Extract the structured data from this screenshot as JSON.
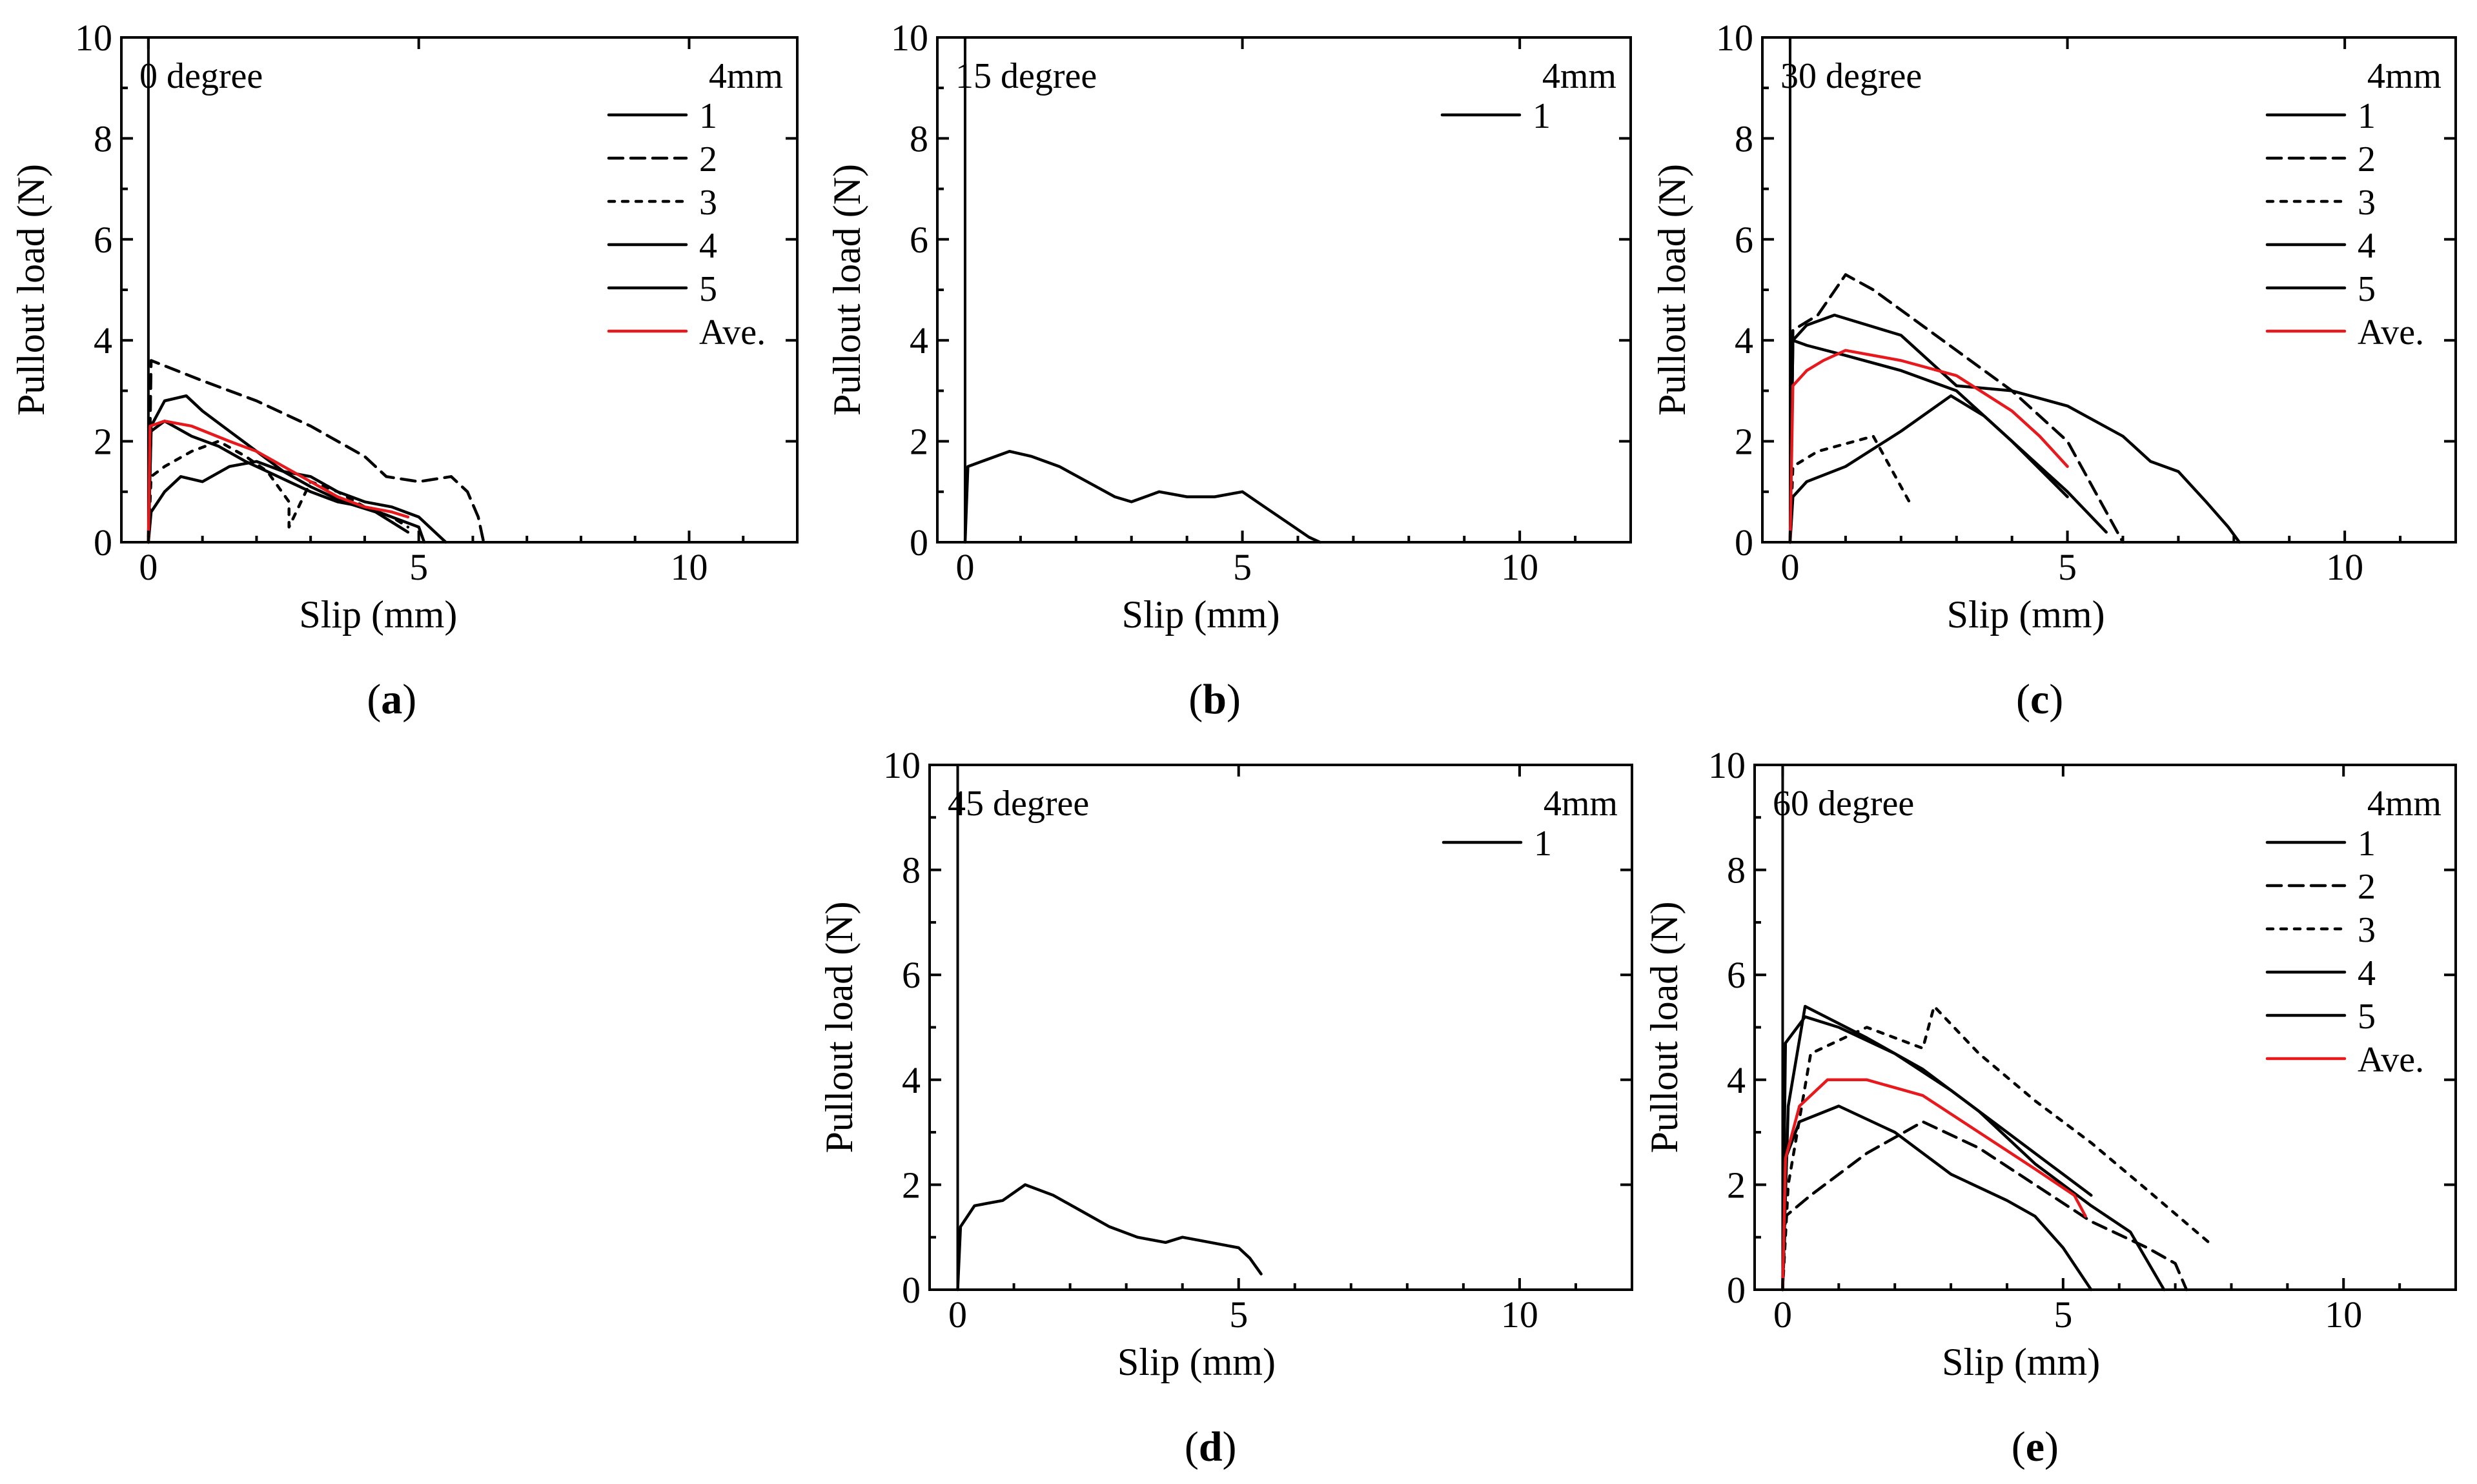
{
  "chart_data": [
    {
      "type": "line",
      "panel_label": "a",
      "annotation": "0 degree",
      "legend_title": "4mm",
      "xlabel": "Slip (mm)",
      "ylabel": "Pullout load (N)",
      "xlim": [
        -0.5,
        12
      ],
      "ylim": [
        0,
        10
      ],
      "xticks": [
        0,
        5,
        10
      ],
      "yticks": [
        0,
        2,
        4,
        6,
        8,
        10
      ],
      "series": [
        {
          "name": "1",
          "color": "#000000",
          "dash": "solid",
          "x": [
            0,
            0.05,
            0.3,
            0.8,
            1.3,
            1.8,
            2.2,
            2.6,
            3.0,
            3.5,
            4.0,
            4.5,
            5.0,
            5.1
          ],
          "y": [
            0,
            2.2,
            2.4,
            2.1,
            1.9,
            1.6,
            1.4,
            1.2,
            1.0,
            0.8,
            0.7,
            0.5,
            0.3,
            0
          ]
        },
        {
          "name": "2",
          "color": "#000000",
          "dash": "dashed",
          "x": [
            0,
            0.05,
            1.0,
            2.0,
            3.0,
            4.0,
            4.4,
            5.0,
            5.6,
            5.9,
            6.1,
            6.2
          ],
          "y": [
            0,
            3.6,
            3.2,
            2.8,
            2.3,
            1.7,
            1.3,
            1.2,
            1.3,
            1.0,
            0.5,
            0
          ]
        },
        {
          "name": "3",
          "color": "#000000",
          "dash": "dotted",
          "x": [
            0,
            0.05,
            0.3,
            0.8,
            1.3,
            1.8,
            2.2,
            2.6,
            2.6,
            3.0,
            3.5,
            4.0,
            4.5,
            4.8
          ],
          "y": [
            0,
            1.3,
            1.5,
            1.8,
            2.0,
            1.7,
            1.4,
            0.8,
            0.3,
            1.2,
            1.0,
            0.7,
            0.5,
            0.3
          ]
        },
        {
          "name": "4",
          "color": "#000000",
          "dash": "solid",
          "x": [
            0,
            0.05,
            0.3,
            0.7,
            1.0,
            1.5,
            2.0,
            2.5,
            3.0,
            3.6,
            4.2,
            4.5,
            4.8
          ],
          "y": [
            0,
            2.3,
            2.8,
            2.9,
            2.6,
            2.2,
            1.8,
            1.4,
            1.1,
            0.8,
            0.6,
            0.4,
            0.2
          ]
        },
        {
          "name": "5",
          "color": "#000000",
          "dash": "solid",
          "x": [
            0,
            0.05,
            0.3,
            0.6,
            1.0,
            1.5,
            2.0,
            2.5,
            3.0,
            3.5,
            4.0,
            4.5,
            5.0,
            5.3,
            5.5
          ],
          "y": [
            0,
            0.6,
            1.0,
            1.3,
            1.2,
            1.5,
            1.6,
            1.4,
            1.3,
            1.0,
            0.8,
            0.7,
            0.5,
            0.2,
            0
          ]
        },
        {
          "name": "Ave.",
          "color": "#e8191c",
          "dash": "solid",
          "x": [
            0,
            0.03,
            0.3,
            0.8,
            1.5,
            2.0,
            2.5,
            3.0,
            3.5,
            4.0,
            4.5,
            4.8
          ],
          "y": [
            0,
            2.3,
            2.4,
            2.3,
            2.0,
            1.8,
            1.5,
            1.2,
            0.9,
            0.7,
            0.6,
            0.5
          ]
        }
      ]
    },
    {
      "type": "line",
      "panel_label": "b",
      "annotation": "15 degree",
      "legend_title": "4mm",
      "xlabel": "Slip (mm)",
      "ylabel": "Pullout load (N)",
      "xlim": [
        -0.5,
        12
      ],
      "ylim": [
        0,
        10
      ],
      "xticks": [
        0,
        5,
        10
      ],
      "yticks": [
        0,
        2,
        4,
        6,
        8,
        10
      ],
      "series": [
        {
          "name": "1",
          "color": "#000000",
          "dash": "solid",
          "x": [
            0,
            0.05,
            0.3,
            0.8,
            1.2,
            1.7,
            2.2,
            2.7,
            3.0,
            3.5,
            4.0,
            4.5,
            5.0,
            5.4,
            5.8,
            6.2,
            6.4
          ],
          "y": [
            0,
            1.5,
            1.6,
            1.8,
            1.7,
            1.5,
            1.2,
            0.9,
            0.8,
            1.0,
            0.9,
            0.9,
            1.0,
            0.7,
            0.4,
            0.1,
            0
          ]
        }
      ]
    },
    {
      "type": "line",
      "panel_label": "c",
      "annotation": "30 degree",
      "legend_title": "4mm",
      "xlabel": "Slip (mm)",
      "ylabel": "Pullout load (N)",
      "xlim": [
        -0.5,
        12
      ],
      "ylim": [
        0,
        10
      ],
      "xticks": [
        0,
        5,
        10
      ],
      "yticks": [
        0,
        2,
        4,
        6,
        8,
        10
      ],
      "series": [
        {
          "name": "1",
          "color": "#000000",
          "dash": "solid",
          "x": [
            0,
            0.05,
            0.3,
            1.0,
            2.0,
            3.0,
            4.0,
            5.0
          ],
          "y": [
            0,
            4.0,
            3.9,
            3.7,
            3.4,
            3.0,
            2.0,
            0.9
          ]
        },
        {
          "name": "2",
          "color": "#000000",
          "dash": "dashed",
          "x": [
            0,
            0.05,
            0.5,
            1.0,
            1.5,
            2.0,
            3.0,
            4.0,
            5.0,
            5.5,
            6.0
          ],
          "y": [
            0,
            4.2,
            4.5,
            5.3,
            5.0,
            4.6,
            3.8,
            3.0,
            2.0,
            1.0,
            0
          ]
        },
        {
          "name": "3",
          "color": "#000000",
          "dash": "dotted",
          "x": [
            0,
            0.05,
            0.5,
            1.5,
            2.2
          ],
          "y": [
            0,
            1.5,
            1.8,
            2.1,
            0.7
          ]
        },
        {
          "name": "4",
          "color": "#000000",
          "dash": "solid",
          "x": [
            0,
            0.05,
            0.3,
            1.0,
            2.0,
            2.9,
            3.5,
            4.0,
            5.0,
            5.7
          ],
          "y": [
            0,
            0.9,
            1.2,
            1.5,
            2.2,
            2.9,
            2.5,
            2.0,
            1.0,
            0.2
          ]
        },
        {
          "name": "5",
          "color": "#000000",
          "dash": "solid",
          "x": [
            0,
            0.05,
            0.3,
            0.8,
            2.0,
            3.0,
            4.0,
            5.0,
            6.0,
            6.5,
            7.0,
            7.5,
            7.9,
            8.1
          ],
          "y": [
            0,
            4.0,
            4.3,
            4.5,
            4.1,
            3.1,
            3.0,
            2.7,
            2.1,
            1.6,
            1.4,
            0.8,
            0.3,
            0
          ]
        },
        {
          "name": "Ave.",
          "color": "#e8191c",
          "dash": "solid",
          "x": [
            0,
            0.05,
            0.3,
            0.6,
            1.0,
            2.0,
            3.0,
            4.0,
            4.5,
            5.0
          ],
          "y": [
            0,
            3.1,
            3.4,
            3.6,
            3.8,
            3.6,
            3.3,
            2.6,
            2.1,
            1.5
          ]
        }
      ]
    },
    {
      "type": "line",
      "panel_label": "d",
      "annotation": "45 degree",
      "legend_title": "4mm",
      "xlabel": "Slip (mm)",
      "ylabel": "Pullout load (N)",
      "xlim": [
        -0.5,
        12
      ],
      "ylim": [
        0,
        10
      ],
      "xticks": [
        0,
        5,
        10
      ],
      "yticks": [
        0,
        2,
        4,
        6,
        8,
        10
      ],
      "series": [
        {
          "name": "1",
          "color": "#000000",
          "dash": "solid",
          "x": [
            0,
            0.05,
            0.3,
            0.8,
            1.2,
            1.7,
            2.2,
            2.7,
            3.2,
            3.7,
            4.0,
            4.5,
            5.0,
            5.2,
            5.4
          ],
          "y": [
            0,
            1.2,
            1.6,
            1.7,
            2.0,
            1.8,
            1.5,
            1.2,
            1.0,
            0.9,
            1.0,
            0.9,
            0.8,
            0.6,
            0.3
          ]
        }
      ]
    },
    {
      "type": "line",
      "panel_label": "e",
      "annotation": "60 degree",
      "legend_title": "4mm",
      "xlabel": "Slip (mm)",
      "ylabel": "Pullout load (N)",
      "xlim": [
        -0.5,
        12
      ],
      "ylim": [
        0,
        10
      ],
      "xticks": [
        0,
        5,
        10
      ],
      "yticks": [
        0,
        2,
        4,
        6,
        8,
        10
      ],
      "series": [
        {
          "name": "1",
          "color": "#000000",
          "dash": "solid",
          "x": [
            0,
            0.05,
            0.4,
            1.0,
            2.0,
            3.0,
            4.0,
            5.0,
            5.5
          ],
          "y": [
            0,
            4.7,
            5.2,
            5.0,
            4.5,
            3.8,
            3.0,
            2.2,
            1.8
          ]
        },
        {
          "name": "2",
          "color": "#000000",
          "dash": "dashed",
          "x": [
            0,
            0.05,
            0.5,
            1.5,
            2.5,
            3.5,
            4.5,
            5.5,
            6.5,
            7.0,
            7.2
          ],
          "y": [
            0,
            1.4,
            1.8,
            2.6,
            3.2,
            2.7,
            2.0,
            1.3,
            0.8,
            0.5,
            0
          ]
        },
        {
          "name": "3",
          "color": "#000000",
          "dash": "dotted",
          "x": [
            0,
            0.1,
            0.5,
            1.5,
            2.5,
            2.7,
            3.5,
            4.5,
            5.5,
            6.5,
            7.6
          ],
          "y": [
            0,
            2.0,
            4.5,
            5.0,
            4.6,
            5.4,
            4.5,
            3.6,
            2.8,
            1.9,
            0.9
          ]
        },
        {
          "name": "4",
          "color": "#000000",
          "dash": "solid",
          "x": [
            0,
            0.05,
            0.3,
            1.0,
            2.0,
            3.0,
            4.0,
            4.5,
            5.0,
            5.5
          ],
          "y": [
            0,
            2.5,
            3.2,
            3.5,
            3.0,
            2.2,
            1.7,
            1.4,
            0.8,
            0
          ]
        },
        {
          "name": "5",
          "color": "#000000",
          "dash": "solid",
          "x": [
            0,
            0.1,
            0.4,
            1.5,
            2.5,
            3.5,
            4.5,
            5.5,
            6.2,
            6.8
          ],
          "y": [
            0,
            3.5,
            5.4,
            4.8,
            4.2,
            3.4,
            2.4,
            1.6,
            1.1,
            0
          ]
        },
        {
          "name": "Ave.",
          "color": "#e8191c",
          "dash": "solid",
          "x": [
            0,
            0.05,
            0.3,
            0.8,
            1.5,
            2.5,
            3.5,
            4.5,
            5.2,
            5.4
          ],
          "y": [
            0,
            2.5,
            3.5,
            4.0,
            4.0,
            3.7,
            3.0,
            2.3,
            1.8,
            1.4
          ]
        }
      ]
    }
  ]
}
